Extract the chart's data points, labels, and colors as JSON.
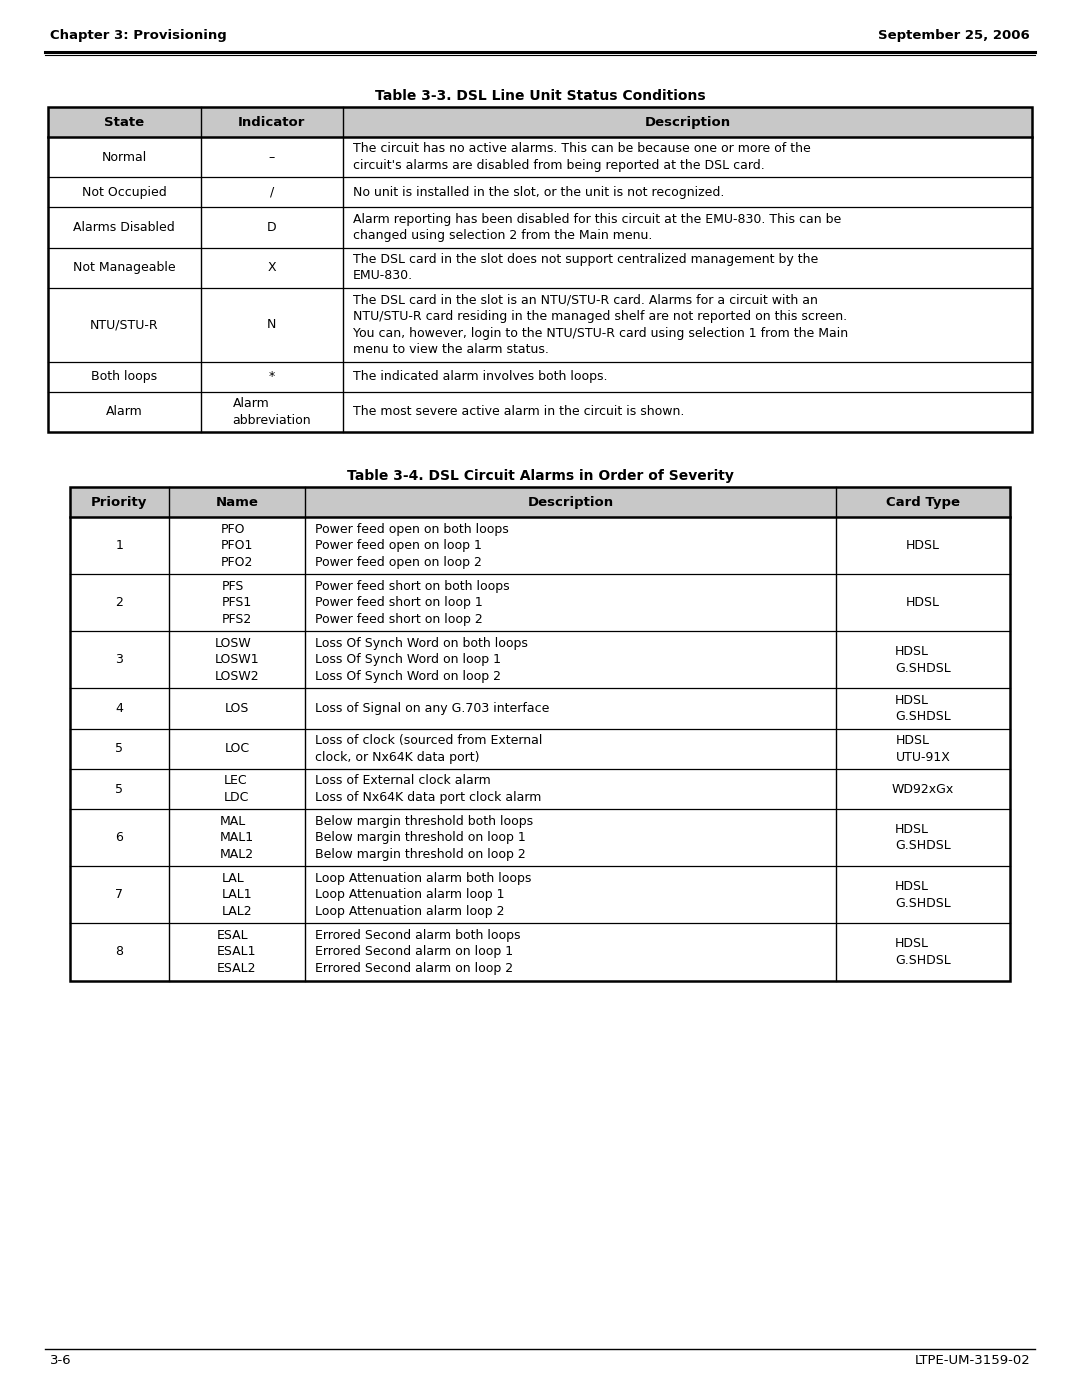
{
  "page_header_left": "Chapter 3: Provisioning",
  "page_header_right": "September 25, 2006",
  "page_footer_left": "3-6",
  "page_footer_right": "LTPE-UM-3159-02",
  "table1_title": "Table 3-3. DSL Line Unit Status Conditions",
  "table1_headers": [
    "State",
    "Indicator",
    "Description"
  ],
  "table1_rows": [
    [
      "Normal",
      "–",
      "The circuit has no active alarms. This can be because one or more of the\ncircuit's alarms are disabled from being reported at the DSL card."
    ],
    [
      "Not Occupied",
      "/",
      "No unit is installed in the slot, or the unit is not recognized."
    ],
    [
      "Alarms Disabled",
      "D",
      "Alarm reporting has been disabled for this circuit at the EMU-830. This can be\nchanged using selection 2 from the Main menu."
    ],
    [
      "Not Manageable",
      "X",
      "The DSL card in the slot does not support centralized management by the\nEMU-830."
    ],
    [
      "NTU/STU-R",
      "N",
      "The DSL card in the slot is an NTU/STU-R card. Alarms for a circuit with an\nNTU/STU-R card residing in the managed shelf are not reported on this screen.\nYou can, however, login to the NTU/STU-R card using selection 1 from the Main\nmenu to view the alarm status."
    ],
    [
      "Both loops",
      "*",
      "The indicated alarm involves both loops."
    ],
    [
      "Alarm",
      "Alarm\nabbreviation",
      "The most severe active alarm in the circuit is shown."
    ]
  ],
  "table2_title": "Table 3-4. DSL Circuit Alarms in Order of Severity",
  "table2_headers": [
    "Priority",
    "Name",
    "Description",
    "Card Type"
  ],
  "table2_rows": [
    [
      "1",
      "PFO\nPFO1\nPFO2",
      "Power feed open on both loops\nPower feed open on loop 1\nPower feed open on loop 2",
      "HDSL"
    ],
    [
      "2",
      "PFS\nPFS1\nPFS2",
      "Power feed short on both loops\nPower feed short on loop 1\nPower feed short on loop 2",
      "HDSL"
    ],
    [
      "3",
      "LOSW\nLOSW1\nLOSW2",
      "Loss Of Synch Word on both loops\nLoss Of Synch Word on loop 1\nLoss Of Synch Word on loop 2",
      "HDSL\nG.SHDSL"
    ],
    [
      "4",
      "LOS",
      "Loss of Signal on any G.703 interface",
      "HDSL\nG.SHDSL"
    ],
    [
      "5",
      "LOC",
      "Loss of clock (sourced from External\nclock, or Nx64K data port)",
      "HDSL\nUTU-91X"
    ],
    [
      "5",
      "LEC\nLDC",
      "Loss of External clock alarm\nLoss of Nx64K data port clock alarm",
      "WD92xGx"
    ],
    [
      "6",
      "MAL\nMAL1\nMAL2",
      "Below margin threshold both loops\nBelow margin threshold on loop 1\nBelow margin threshold on loop 2",
      "HDSL\nG.SHDSL"
    ],
    [
      "7",
      "LAL\nLAL1\nLAL2",
      "Loop Attenuation alarm both loops\nLoop Attenuation alarm loop 1\nLoop Attenuation alarm loop 2",
      "HDSL\nG.SHDSL"
    ],
    [
      "8",
      "ESAL\nESAL1\nESAL2",
      "Errored Second alarm both loops\nErrored Second alarm on loop 1\nErrored Second alarm on loop 2",
      "HDSL\nG.SHDSL"
    ]
  ],
  "bg_color": "#ffffff",
  "header_bg": "#c8c8c8",
  "border_color": "#000000",
  "text_color": "#000000",
  "font_size": 9.0,
  "header_font_size": 9.5,
  "title_font_size": 10.0
}
